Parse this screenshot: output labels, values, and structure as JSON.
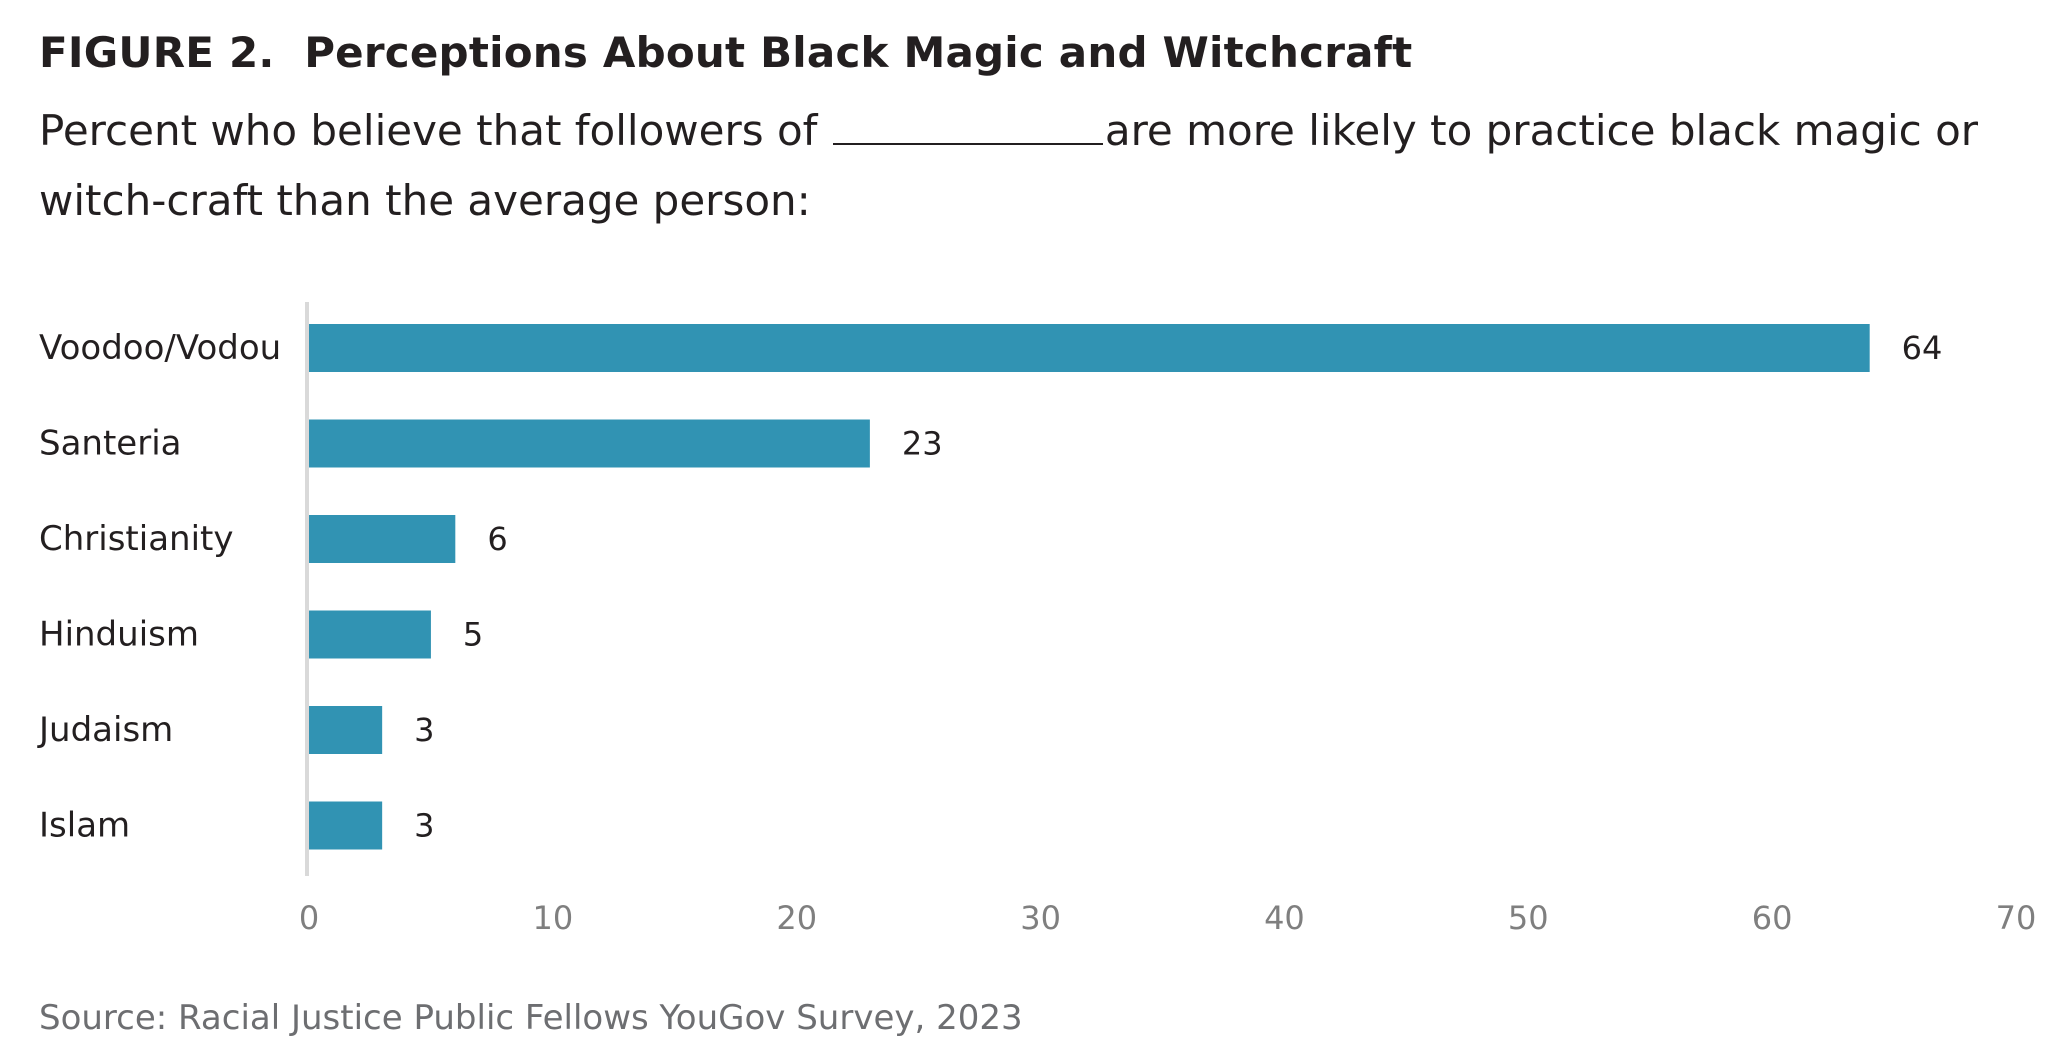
{
  "figure": {
    "label": "FIGURE 2.",
    "title": "Perceptions About Black Magic and Witchcraft",
    "subtitle_before": "Percent who believe that followers of",
    "subtitle_after": "are more likely to practice black magic or witch-craft than the average person:",
    "source": "Source: Racial Justice Public Fellows YouGov Survey, 2023"
  },
  "chart_data": {
    "type": "bar",
    "orientation": "horizontal",
    "categories": [
      "Voodoo/Vodou",
      "Santeria",
      "Christianity",
      "Hinduism",
      "Judaism",
      "Islam"
    ],
    "values": [
      64,
      23,
      6,
      5,
      3,
      3
    ],
    "xlim": [
      0,
      70
    ],
    "xticks": [
      0,
      10,
      20,
      30,
      40,
      50,
      60,
      70
    ],
    "grid": false,
    "data_labels": true,
    "bar_color": "#3193b3",
    "axis_color": "#d9d9d9",
    "tick_color": "#7f7f7f"
  }
}
